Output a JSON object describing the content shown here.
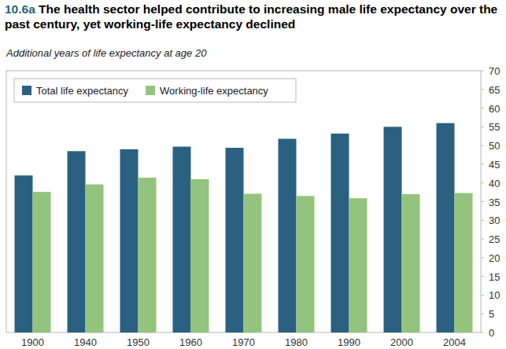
{
  "chart_data": {
    "type": "bar",
    "title": "10.6a The health sector helped contribute to increasing male life expectancy over the past century, yet working-life expectancy declined",
    "subtitle": "Additional years of life expectancy at age 20",
    "categories": [
      "1900",
      "1940",
      "1950",
      "1960",
      "1970",
      "1980",
      "1990",
      "2000",
      "2004"
    ],
    "series": [
      {
        "name": "Total life expectancy",
        "color": "#2a6180",
        "values": [
          42,
          48.5,
          49,
          49.7,
          49.4,
          51.8,
          53.2,
          55,
          56
        ]
      },
      {
        "name": "Working-life expectancy",
        "color": "#93c47d",
        "values": [
          37.6,
          39.6,
          41.4,
          41,
          37.1,
          36.5,
          35.9,
          37,
          37.3
        ]
      }
    ],
    "ylim": [
      0,
      70
    ],
    "yticks": [
      0,
      5,
      10,
      15,
      20,
      25,
      30,
      35,
      40,
      45,
      50,
      55,
      60,
      65,
      70
    ],
    "grid": false,
    "legend": "top-left"
  }
}
